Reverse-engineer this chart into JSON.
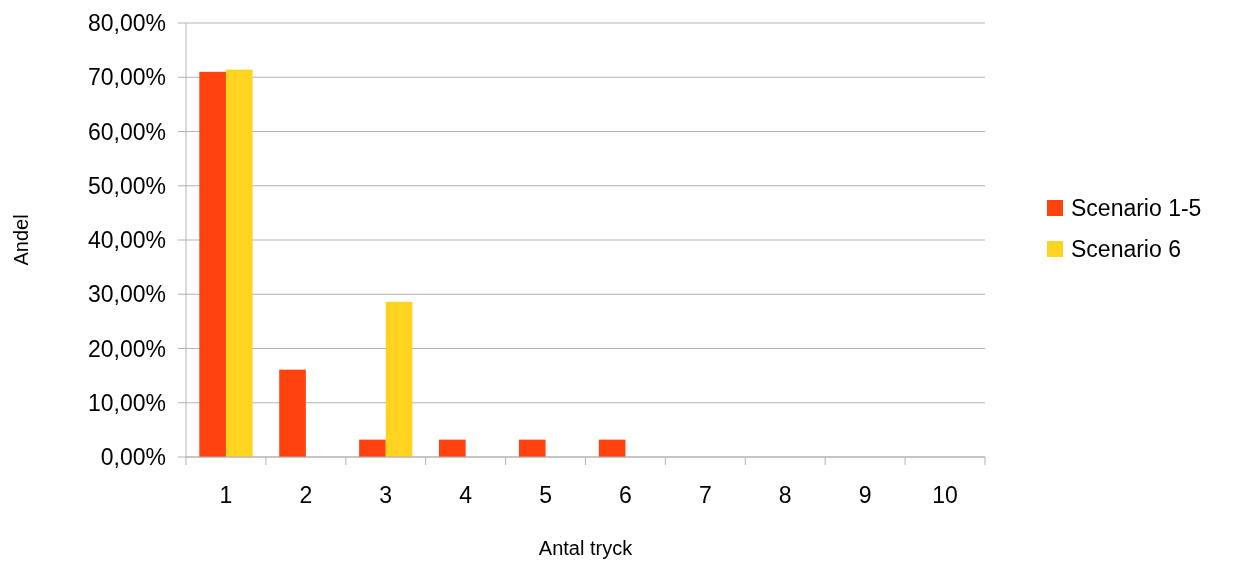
{
  "chart_data": {
    "type": "bar",
    "xlabel": "Antal tryck",
    "ylabel": "Andel",
    "categories": [
      "1",
      "2",
      "3",
      "4",
      "5",
      "6",
      "7",
      "8",
      "9",
      "10"
    ],
    "series": [
      {
        "name": "Scenario 1-5",
        "color": "#ff420e",
        "values": [
          71,
          16.1,
          3.2,
          3.2,
          3.2,
          3.2,
          0,
          0,
          0,
          0
        ]
      },
      {
        "name": "Scenario 6",
        "color": "#ffd320",
        "values": [
          71.4,
          0,
          28.6,
          0,
          0,
          0,
          0,
          0,
          0,
          0
        ]
      }
    ],
    "ylim": [
      0,
      80
    ],
    "yticks": [
      {
        "value": 0,
        "label": "0,00%"
      },
      {
        "value": 10,
        "label": "10,00%"
      },
      {
        "value": 20,
        "label": "20,00%"
      },
      {
        "value": 30,
        "label": "30,00%"
      },
      {
        "value": 40,
        "label": "40,00%"
      },
      {
        "value": 50,
        "label": "50,00%"
      },
      {
        "value": 60,
        "label": "60,00%"
      },
      {
        "value": 70,
        "label": "70,00%"
      },
      {
        "value": 80,
        "label": "80,00%"
      }
    ],
    "grid": "y",
    "legend": "right"
  }
}
